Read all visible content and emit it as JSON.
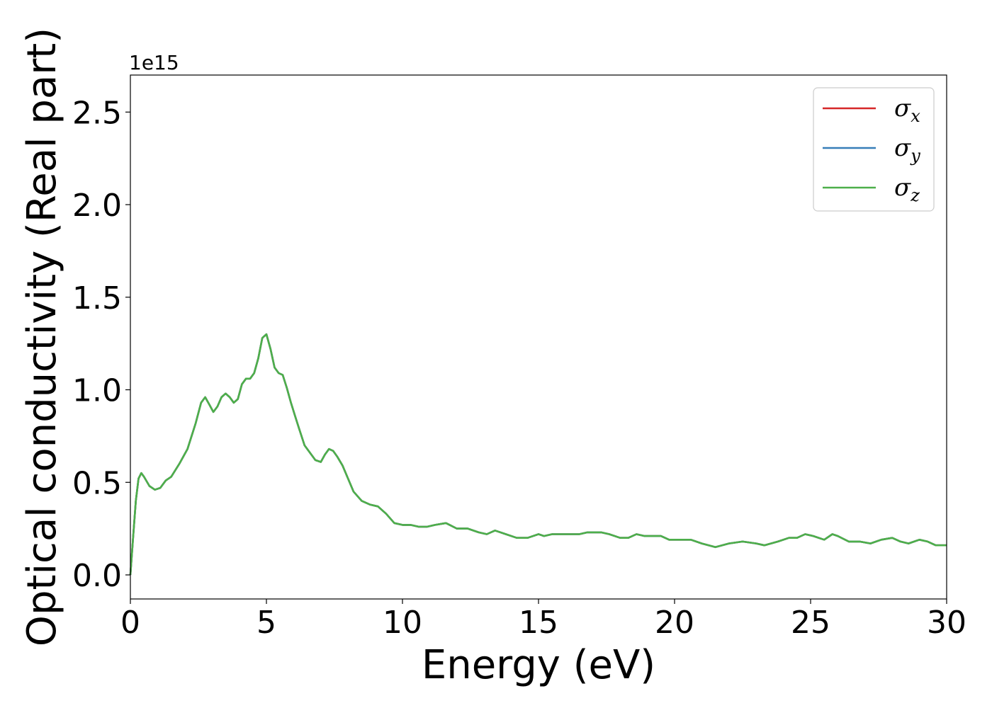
{
  "chart_data": {
    "type": "line",
    "xlabel": "Energy (eV)",
    "ylabel": "Optical conductivity (Real part)",
    "y_offset_text": "1e15",
    "xlim": [
      0,
      30
    ],
    "ylim": [
      -0.13,
      2.7
    ],
    "x_ticks": [
      0,
      5,
      10,
      15,
      20,
      25,
      30
    ],
    "x_tick_labels": [
      "0",
      "5",
      "10",
      "15",
      "20",
      "25",
      "30"
    ],
    "y_ticks": [
      0.0,
      0.5,
      1.0,
      1.5,
      2.0,
      2.5
    ],
    "y_tick_labels": [
      "0.0",
      "0.5",
      "1.0",
      "1.5",
      "2.0",
      "2.5"
    ],
    "grid": false,
    "legend_position": "top-right",
    "series": [
      {
        "name": "σx",
        "symbol": "σ",
        "subscript": "x",
        "color": "#d62728"
      },
      {
        "name": "σy",
        "symbol": "σ",
        "subscript": "y",
        "color": "#377eb8"
      },
      {
        "name": "σz",
        "symbol": "σ",
        "subscript": "z",
        "color": "#4daf4a"
      }
    ],
    "x": [
      0,
      0.1,
      0.2,
      0.3,
      0.4,
      0.5,
      0.7,
      0.9,
      1.1,
      1.3,
      1.5,
      1.8,
      2.1,
      2.4,
      2.6,
      2.75,
      2.9,
      3.05,
      3.2,
      3.35,
      3.5,
      3.65,
      3.8,
      3.95,
      4.1,
      4.25,
      4.4,
      4.55,
      4.7,
      4.85,
      5.0,
      5.15,
      5.3,
      5.45,
      5.6,
      5.75,
      5.9,
      6.05,
      6.2,
      6.4,
      6.6,
      6.8,
      7.0,
      7.15,
      7.3,
      7.45,
      7.6,
      7.8,
      8.0,
      8.2,
      8.5,
      8.8,
      9.1,
      9.4,
      9.7,
      10.0,
      10.3,
      10.6,
      10.9,
      11.2,
      11.6,
      12.0,
      12.4,
      12.8,
      13.1,
      13.4,
      13.8,
      14.2,
      14.6,
      15.0,
      15.2,
      15.5,
      15.8,
      16.2,
      16.5,
      16.8,
      17.0,
      17.3,
      17.6,
      18.0,
      18.3,
      18.6,
      18.9,
      19.2,
      19.5,
      19.8,
      20.2,
      20.6,
      21.0,
      21.5,
      22.0,
      22.5,
      23.0,
      23.3,
      23.8,
      24.2,
      24.5,
      24.8,
      25.1,
      25.5,
      25.8,
      26.0,
      26.4,
      26.8,
      27.2,
      27.6,
      28.0,
      28.3,
      28.6,
      29.0,
      29.3,
      29.6,
      30.0
    ],
    "y": [
      0.0,
      0.2,
      0.4,
      0.52,
      0.55,
      0.53,
      0.48,
      0.46,
      0.47,
      0.51,
      0.53,
      0.6,
      0.68,
      0.82,
      0.93,
      0.96,
      0.92,
      0.88,
      0.91,
      0.96,
      0.98,
      0.96,
      0.93,
      0.95,
      1.03,
      1.06,
      1.06,
      1.09,
      1.17,
      1.28,
      1.3,
      1.22,
      1.12,
      1.09,
      1.08,
      1.01,
      0.93,
      0.86,
      0.79,
      0.7,
      0.66,
      0.62,
      0.61,
      0.65,
      0.68,
      0.67,
      0.64,
      0.59,
      0.52,
      0.45,
      0.4,
      0.38,
      0.37,
      0.33,
      0.28,
      0.27,
      0.27,
      0.26,
      0.26,
      0.27,
      0.28,
      0.25,
      0.25,
      0.23,
      0.22,
      0.24,
      0.22,
      0.2,
      0.2,
      0.22,
      0.21,
      0.22,
      0.22,
      0.22,
      0.22,
      0.23,
      0.23,
      0.23,
      0.22,
      0.2,
      0.2,
      0.22,
      0.21,
      0.21,
      0.21,
      0.19,
      0.19,
      0.19,
      0.17,
      0.15,
      0.17,
      0.18,
      0.17,
      0.16,
      0.18,
      0.2,
      0.2,
      0.22,
      0.21,
      0.19,
      0.22,
      0.21,
      0.18,
      0.18,
      0.17,
      0.19,
      0.2,
      0.18,
      0.17,
      0.19,
      0.18,
      0.16,
      0.16
    ]
  }
}
